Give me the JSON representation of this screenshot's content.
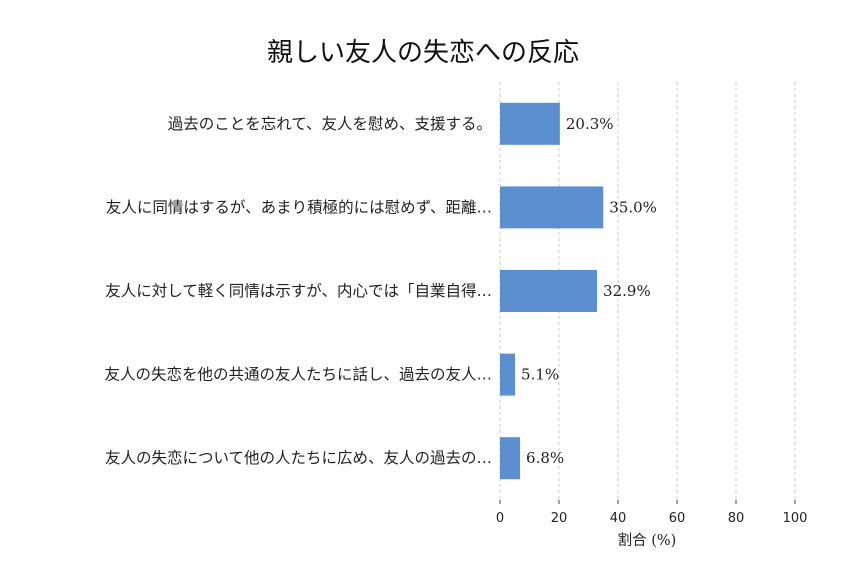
{
  "chart_data": {
    "type": "bar",
    "orientation": "horizontal",
    "title": "親しい友人の失恋への反応",
    "xlabel": "割合 (%)",
    "ylabel": "",
    "xlim": [
      0,
      100
    ],
    "xticks": [
      "0",
      "20",
      "40",
      "60",
      "80",
      "100"
    ],
    "grid": true,
    "categories": [
      "過去のことを忘れて、友人を慰め、支援する。",
      "友人に同情はするが、あまり積極的には慰めず、距離…",
      "友人に対して軽く同情は示すが、内心では「自業自得…",
      "友人の失恋を他の共通の友人たちに話し、過去の友人…",
      "友人の失恋について他の人たちに広め、友人の過去の…"
    ],
    "values": [
      20.3,
      35.0,
      32.9,
      5.1,
      6.8
    ],
    "value_labels": [
      "20.3%",
      "35.0%",
      "32.9%",
      "5.1%",
      "6.8%"
    ],
    "bar_color": "#5b8fd0"
  }
}
